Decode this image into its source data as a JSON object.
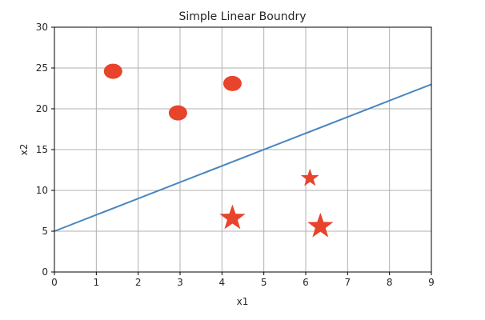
{
  "chart_data": {
    "type": "scatter",
    "title": "Simple Linear Boundry",
    "xlabel": "x1",
    "ylabel": "x2",
    "xlim": [
      0,
      9
    ],
    "ylim": [
      0,
      30
    ],
    "xticks": [
      0,
      1,
      2,
      3,
      4,
      5,
      6,
      7,
      8,
      9
    ],
    "yticks": [
      0,
      5,
      10,
      15,
      20,
      25,
      30
    ],
    "grid": true,
    "series": [
      {
        "marker": "circle",
        "color": "#e8432b",
        "points": [
          {
            "x": 1.4,
            "y": 24.6
          },
          {
            "x": 2.95,
            "y": 19.5
          },
          {
            "x": 4.25,
            "y": 23.1
          }
        ]
      },
      {
        "marker": "star",
        "color": "#e8432b",
        "points": [
          {
            "x": 4.25,
            "y": 6.6,
            "size": "large"
          },
          {
            "x": 6.1,
            "y": 11.5,
            "size": "small"
          },
          {
            "x": 6.35,
            "y": 5.6,
            "size": "large"
          }
        ]
      }
    ],
    "lines": [
      {
        "type": "line",
        "color": "#4a86c0",
        "points": [
          {
            "x": 0,
            "y": 5
          },
          {
            "x": 9,
            "y": 23
          }
        ]
      }
    ]
  }
}
